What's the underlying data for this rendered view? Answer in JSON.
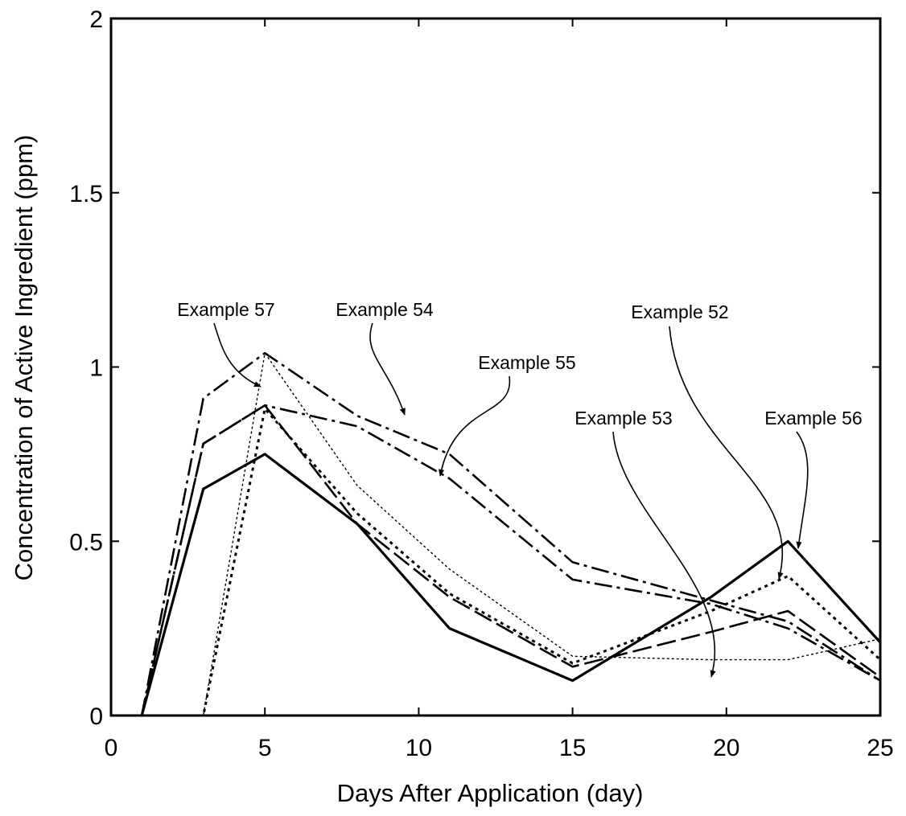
{
  "chart_data": {
    "type": "line",
    "xlabel": "Days After Application (day)",
    "ylabel": "Concentration of Active Ingredient (ppm)",
    "xlim": [
      0,
      25
    ],
    "ylim": [
      0,
      2
    ],
    "xticks": [
      0,
      5,
      10,
      15,
      20,
      25
    ],
    "yticks": [
      0,
      0.5,
      1,
      1.5,
      2
    ],
    "xtick_labels": [
      "0",
      "5",
      "10",
      "15",
      "20",
      "25"
    ],
    "ytick_labels": [
      "0",
      "0.5",
      "1",
      "1.5",
      "2"
    ],
    "grid": false,
    "legend": "none",
    "series": [
      {
        "name": "Example 52",
        "style": "dotted",
        "x": [
          1,
          3,
          5,
          8,
          11,
          15,
          19.5,
          22,
          25
        ],
        "y": [
          0,
          0,
          0.88,
          0.58,
          0.35,
          0.15,
          0.3,
          0.4,
          0.16
        ]
      },
      {
        "name": "Example 53",
        "style": "long-dash",
        "x": [
          1,
          3,
          5,
          8,
          11,
          15,
          19.5,
          22,
          25
        ],
        "y": [
          0,
          0.78,
          0.89,
          0.55,
          0.34,
          0.14,
          0.24,
          0.3,
          0.11
        ]
      },
      {
        "name": "Example 54",
        "style": "dash-dot",
        "x": [
          1,
          3,
          5,
          8,
          11,
          15,
          19.5,
          22,
          25
        ],
        "y": [
          0,
          0.91,
          1.04,
          0.86,
          0.75,
          0.44,
          0.33,
          0.27,
          0.1
        ]
      },
      {
        "name": "Example 55",
        "style": "dash-dot",
        "x": [
          1,
          3,
          5,
          8,
          11,
          15,
          19.5,
          22,
          25
        ],
        "y": [
          0,
          0.78,
          0.89,
          0.83,
          0.68,
          0.39,
          0.32,
          0.25,
          0.1
        ]
      },
      {
        "name": "Example 56",
        "style": "solid",
        "x": [
          1,
          3,
          5,
          8,
          11,
          15,
          19.5,
          22,
          25
        ],
        "y": [
          0,
          0.65,
          0.75,
          0.55,
          0.25,
          0.1,
          0.34,
          0.5,
          0.21
        ]
      },
      {
        "name": "Example 57",
        "style": "fine-dotted",
        "x": [
          1,
          3,
          5,
          8,
          11,
          15,
          19.5,
          22,
          25
        ],
        "y": [
          0,
          0,
          1.04,
          0.66,
          0.42,
          0.17,
          0.16,
          0.16,
          0.22
        ]
      }
    ],
    "annotations": [
      {
        "text": "Example 57",
        "series": "Example 57"
      },
      {
        "text": "Example 54",
        "series": "Example 54"
      },
      {
        "text": "Example 55",
        "series": "Example 55"
      },
      {
        "text": "Example 52",
        "series": "Example 52"
      },
      {
        "text": "Example 53",
        "series": "Example 53"
      },
      {
        "text": "Example 56",
        "series": "Example 56"
      }
    ]
  }
}
